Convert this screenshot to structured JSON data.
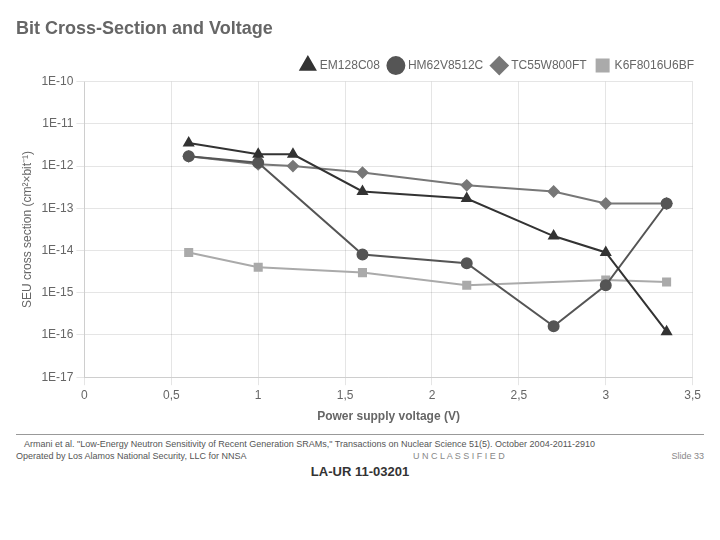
{
  "chart_data": {
    "type": "line",
    "title": "Bit Cross-Section and Voltage",
    "x_label": "Power supply voltage (V)",
    "y_label": "SEU cross section (cm²×bit⁻¹)",
    "log": "y",
    "grid": true,
    "legend": "upper right",
    "xlim": [
      0,
      3.5
    ],
    "xticks": [
      0,
      {
        "value": 0.5,
        "label": "0,5"
      },
      1,
      {
        "value": 1.5,
        "label": "1,5"
      },
      2,
      {
        "value": 2.5,
        "label": "2,5"
      },
      3,
      {
        "value": 3.5,
        "label": "3,5"
      }
    ],
    "ylim": [
      1e-17,
      1e-10
    ],
    "yticks": [
      {
        "value": 1e-17,
        "label": "1E-17"
      },
      {
        "value": 1e-16,
        "label": "1E-16"
      },
      {
        "value": 1e-15,
        "label": "1E-15"
      },
      {
        "value": 1e-14,
        "label": "1E-14"
      },
      {
        "value": 1e-13,
        "label": "1E-13"
      },
      {
        "value": 1e-12,
        "label": "1E-12"
      },
      {
        "value": 1e-11,
        "label": "1E-11"
      },
      {
        "value": 1e-10,
        "label": "1E-10"
      }
    ],
    "series": [
      {
        "name": "EM128C08",
        "color": "#333333",
        "marker": "triangle",
        "x": [
          0.6,
          1.0,
          1.2,
          1.6,
          2.2,
          2.7,
          3.0,
          3.35
        ],
        "values": [
          3.5e-12,
          1.9e-12,
          1.9e-12,
          2.5e-13,
          1.7e-13,
          2.2e-14,
          9e-15,
          1.2e-16
        ]
      },
      {
        "name": "HM62V8512C",
        "color": "#555555",
        "marker": "circle",
        "x": [
          0.6,
          1.0,
          1.6,
          2.2,
          2.7,
          3.0,
          3.35
        ],
        "values": [
          1.7e-12,
          1.2e-12,
          8e-15,
          5e-15,
          1.6e-16,
          1.5e-15,
          1.3e-13
        ]
      },
      {
        "name": "TC55W800FT",
        "color": "#777777",
        "marker": "diamond",
        "x": [
          0.6,
          1.0,
          1.2,
          1.6,
          2.2,
          2.7,
          3.0,
          3.35
        ],
        "values": [
          1.7e-12,
          1.1e-12,
          1e-12,
          7e-13,
          3.5e-13,
          2.5e-13,
          1.3e-13,
          1.3e-13
        ]
      },
      {
        "name": "K6F8016U6BF",
        "color": "#aaaaaa",
        "marker": "square",
        "x": [
          0.6,
          1.0,
          1.6,
          2.2,
          3.0,
          3.35
        ],
        "values": [
          9e-15,
          4e-15,
          3e-15,
          1.5e-15,
          2e-15,
          1.8e-15
        ]
      }
    ],
    "annotations": [
      "Armani et al. \"Low-Energy Neutron Sensitivity of Recent Generation SRAMs,\" Transactions on Nuclear Science 51(5). October 2004-2011-2910",
      "U N C L A S S I F I E D",
      "Slide 33",
      "Operated by Los Alamos National Security, LLC for NNSA",
      "LA-UR 11-03201"
    ]
  }
}
